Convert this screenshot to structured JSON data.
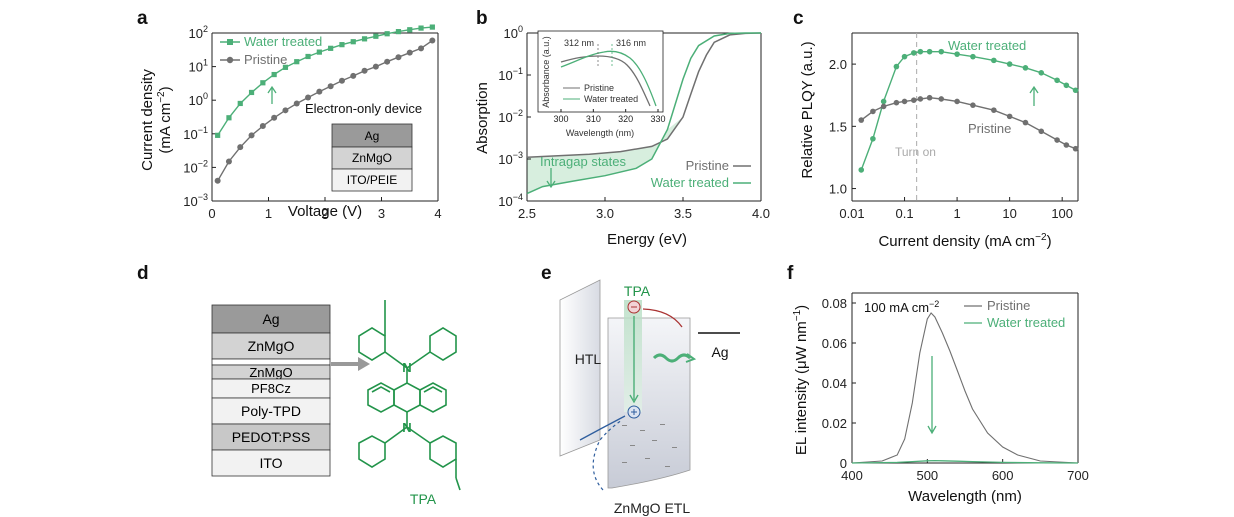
{
  "panels": {
    "a": {
      "label": "a",
      "chart_data": {
        "type": "line",
        "xlabel": "Voltage (V)",
        "ylabel_line1": "Current density",
        "ylabel_unit_base": "(mA cm",
        "ylabel_unit_exp": "−2",
        "ylabel_unit_end": ")",
        "xlim": [
          0,
          4
        ],
        "ylim_log10": [
          -3,
          2
        ],
        "yscale": "log",
        "xticks": [
          "0",
          "1",
          "2",
          "3",
          "4"
        ],
        "yticks": [
          {
            "exp": -3,
            "base": "10",
            "sup": "−3"
          },
          {
            "exp": -2,
            "base": "10",
            "sup": "−2"
          },
          {
            "exp": -1,
            "base": "10",
            "sup": "−1"
          },
          {
            "exp": 0,
            "base": "10",
            "sup": "0"
          },
          {
            "exp": 1,
            "base": "10",
            "sup": "1"
          },
          {
            "exp": 2,
            "base": "10",
            "sup": "2"
          }
        ],
        "legend": "top-left",
        "series": [
          {
            "name": "Water treated",
            "color": "#4caf78",
            "marker": "square",
            "x": [
              0.1,
              0.3,
              0.5,
              0.7,
              0.9,
              1.1,
              1.3,
              1.5,
              1.7,
              1.9,
              2.1,
              2.3,
              2.5,
              2.7,
              2.9,
              3.1,
              3.3,
              3.5,
              3.7,
              3.9
            ],
            "y": [
              0.09,
              0.3,
              0.8,
              1.7,
              3.3,
              5.8,
              9.5,
              14,
              20,
              27,
              35,
              45,
              55,
              67,
              80,
              95,
              110,
              125,
              140,
              150
            ]
          },
          {
            "name": "Pristine",
            "color": "#707070",
            "marker": "circle",
            "x": [
              0.1,
              0.3,
              0.5,
              0.7,
              0.9,
              1.1,
              1.3,
              1.5,
              1.7,
              1.9,
              2.1,
              2.3,
              2.5,
              2.7,
              2.9,
              3.1,
              3.3,
              3.5,
              3.7,
              3.9
            ],
            "y": [
              0.004,
              0.015,
              0.04,
              0.09,
              0.17,
              0.3,
              0.5,
              0.8,
              1.2,
              1.8,
              2.6,
              3.8,
              5.3,
              7.5,
              10,
              14,
              19,
              26,
              35,
              60
            ]
          }
        ],
        "annotation": "Electron-only device",
        "device_stack": [
          "Ag",
          "ZnMgO",
          "ITO/PEIE"
        ]
      }
    },
    "b": {
      "label": "b",
      "chart_data": {
        "type": "line",
        "xlabel": "Energy (eV)",
        "ylabel": "Absorption",
        "xlim": [
          2.5,
          4.0
        ],
        "ylim_log10": [
          -4,
          0
        ],
        "yscale": "log",
        "xticks": [
          "2.5",
          "3.0",
          "3.5",
          "4.0"
        ],
        "yticks": [
          {
            "exp": -4,
            "base": "10",
            "sup": "−4"
          },
          {
            "exp": -3,
            "base": "10",
            "sup": "−3"
          },
          {
            "exp": -2,
            "base": "10",
            "sup": "−2"
          },
          {
            "exp": -1,
            "base": "10",
            "sup": "−1"
          },
          {
            "exp": 0,
            "base": "10",
            "sup": "0"
          }
        ],
        "legend": "bottom-right",
        "series": [
          {
            "name": "Pristine",
            "color": "#707070",
            "x": [
              2.5,
              2.7,
              2.9,
              3.1,
              3.3,
              3.4,
              3.5,
              3.55,
              3.6,
              3.65,
              3.7,
              3.8,
              3.9,
              4.0
            ],
            "y": [
              0.0011,
              0.0012,
              0.0013,
              0.0015,
              0.002,
              0.003,
              0.01,
              0.035,
              0.12,
              0.3,
              0.6,
              0.9,
              0.98,
              1.0
            ]
          },
          {
            "name": "Water treated",
            "color": "#4caf78",
            "x": [
              2.5,
              2.6,
              2.8,
              3.0,
              3.2,
              3.3,
              3.4,
              3.45,
              3.5,
              3.55,
              3.6,
              3.7,
              3.8,
              3.9,
              4.0
            ],
            "y": [
              0.00015,
              0.00022,
              0.0003,
              0.0004,
              0.0006,
              0.001,
              0.005,
              0.02,
              0.08,
              0.25,
              0.5,
              0.85,
              0.98,
              1.0,
              1.0
            ]
          }
        ],
        "annotation": "Intragap states",
        "inset": {
          "xlabel": "Wavelength (nm)",
          "ylabel": "Absorbance (a.u.)",
          "xticks": [
            "300",
            "310",
            "320",
            "330"
          ],
          "xlim": [
            300,
            330
          ],
          "peak_labels": [
            "312 nm",
            "316 nm"
          ],
          "legend": [
            "Pristine",
            "Water treated"
          ]
        }
      }
    },
    "c": {
      "label": "c",
      "chart_data": {
        "type": "line",
        "xlabel_base": "Current density (mA cm",
        "xlabel_exp": "−2",
        "xlabel_end": ")",
        "ylabel": "Relative PLQY (a.u.)",
        "xscale": "log",
        "xlim": [
          0.01,
          200
        ],
        "ylim": [
          0.9,
          2.25
        ],
        "xticks": [
          {
            "v": 0.01,
            "label": "0.01"
          },
          {
            "v": 0.1,
            "label": "0.1"
          },
          {
            "v": 1,
            "label": "1"
          },
          {
            "v": 10,
            "label": "10"
          },
          {
            "v": 100,
            "label": "100"
          }
        ],
        "yticks": [
          "1.0",
          "1.5",
          "2.0"
        ],
        "series": [
          {
            "name": "Water treated",
            "color": "#4caf78",
            "x": [
              0.015,
              0.025,
              0.04,
              0.07,
              0.1,
              0.15,
              0.2,
              0.3,
              0.5,
              1,
              2,
              5,
              10,
              20,
              40,
              80,
              120,
              180
            ],
            "y": [
              1.15,
              1.4,
              1.7,
              1.98,
              2.06,
              2.09,
              2.1,
              2.1,
              2.1,
              2.08,
              2.06,
              2.03,
              2.0,
              1.97,
              1.93,
              1.87,
              1.83,
              1.79
            ]
          },
          {
            "name": "Pristine",
            "color": "#707070",
            "x": [
              0.015,
              0.025,
              0.04,
              0.07,
              0.1,
              0.15,
              0.2,
              0.3,
              0.5,
              1,
              2,
              5,
              10,
              20,
              40,
              80,
              120,
              180
            ],
            "y": [
              1.55,
              1.62,
              1.66,
              1.69,
              1.7,
              1.71,
              1.72,
              1.73,
              1.72,
              1.7,
              1.67,
              1.63,
              1.58,
              1.53,
              1.46,
              1.39,
              1.35,
              1.32
            ]
          }
        ],
        "annotations": [
          "Water treated",
          "Pristine",
          "Turn on"
        ],
        "turn_on_x": 0.17
      }
    },
    "d": {
      "label": "d",
      "stack": [
        "Ag",
        "ZnMgO",
        "ZnMgO",
        "PF8Cz",
        "Poly-TPD",
        "PEDOT:PSS",
        "ITO"
      ],
      "molecule": "TPA"
    },
    "e": {
      "label": "e",
      "htl": "HTL",
      "tpa": "TPA",
      "ag": "Ag",
      "etl": "ZnMgO ETL"
    },
    "f": {
      "label": "f",
      "chart_data": {
        "type": "line",
        "xlabel": "Wavelength (nm)",
        "ylabel_base": "EL intensity (μW nm",
        "ylabel_exp": "−1",
        "ylabel_end": ")",
        "xlim": [
          400,
          700
        ],
        "ylim": [
          0,
          0.085
        ],
        "xticks": [
          "400",
          "500",
          "600",
          "700"
        ],
        "yticks": [
          "0",
          "0.02",
          "0.04",
          "0.06",
          "0.08"
        ],
        "legend": "top-right",
        "annotation_base": "100 mA cm",
        "annotation_exp": "−2",
        "series": [
          {
            "name": "Pristine",
            "color": "#707070",
            "x": [
              400,
              440,
              460,
              470,
              480,
              490,
              500,
              505,
              510,
              520,
              530,
              540,
              550,
              560,
              580,
              600,
              620,
              650,
              700
            ],
            "y": [
              0,
              0.001,
              0.004,
              0.012,
              0.03,
              0.055,
              0.072,
              0.075,
              0.073,
              0.065,
              0.056,
              0.046,
              0.036,
              0.027,
              0.015,
              0.008,
              0.004,
              0.001,
              0
            ]
          },
          {
            "name": "Water treated",
            "color": "#4caf78",
            "x": [
              400,
              460,
              480,
              500,
              510,
              520,
              540,
              560,
              600,
              650,
              700
            ],
            "y": [
              0,
              0.0003,
              0.0007,
              0.0011,
              0.0012,
              0.0011,
              0.0009,
              0.0007,
              0.0003,
              0.0001,
              0
            ]
          }
        ]
      }
    }
  },
  "colors": {
    "green": "#4caf78",
    "gray": "#707070",
    "dark": "#1f1f1f"
  }
}
